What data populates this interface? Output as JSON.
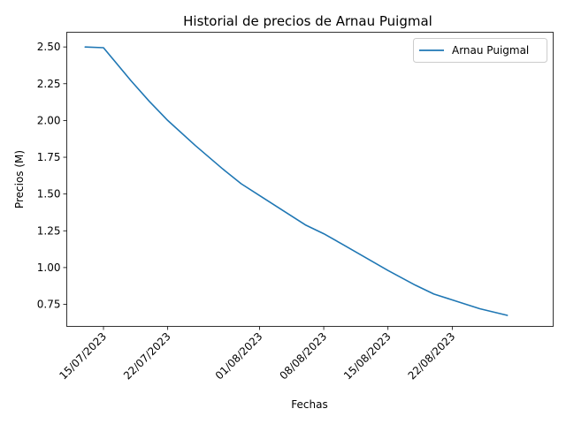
{
  "chart_data": {
    "type": "line",
    "title": "Historial de precios de Arnau Puigmal",
    "xlabel": "Fechas",
    "ylabel": "Precios (M)",
    "x_tick_labels": [
      "15/07/2023",
      "22/07/2023",
      "01/08/2023",
      "08/08/2023",
      "15/08/2023",
      "22/08/2023"
    ],
    "x_tick_dates": [
      "2023-07-15",
      "2023-07-22",
      "2023-08-01",
      "2023-08-08",
      "2023-08-15",
      "2023-08-22"
    ],
    "xlim": [
      "2023-07-11",
      "2023-09-02"
    ],
    "y_ticks": [
      "0.75",
      "1.00",
      "1.25",
      "1.50",
      "1.75",
      "2.00",
      "2.25",
      "2.50"
    ],
    "ylim": [
      0.6,
      2.6
    ],
    "grid": false,
    "legend_position": "top-right",
    "series": [
      {
        "name": "Arnau Puigmal",
        "color": "#1f77b4",
        "points": [
          {
            "x": "2023-07-13",
            "y": 2.5
          },
          {
            "x": "2023-07-15",
            "y": 2.495
          },
          {
            "x": "2023-07-18",
            "y": 2.27
          },
          {
            "x": "2023-07-20",
            "y": 2.13
          },
          {
            "x": "2023-07-22",
            "y": 2.0
          },
          {
            "x": "2023-07-25",
            "y": 1.83
          },
          {
            "x": "2023-07-28",
            "y": 1.67
          },
          {
            "x": "2023-07-30",
            "y": 1.57
          },
          {
            "x": "2023-08-01",
            "y": 1.49
          },
          {
            "x": "2023-08-04",
            "y": 1.37
          },
          {
            "x": "2023-08-06",
            "y": 1.29
          },
          {
            "x": "2023-08-08",
            "y": 1.23
          },
          {
            "x": "2023-08-10",
            "y": 1.16
          },
          {
            "x": "2023-08-15",
            "y": 0.98
          },
          {
            "x": "2023-08-18",
            "y": 0.88
          },
          {
            "x": "2023-08-20",
            "y": 0.82
          },
          {
            "x": "2023-08-22",
            "y": 0.78
          },
          {
            "x": "2023-08-25",
            "y": 0.72
          },
          {
            "x": "2023-08-28",
            "y": 0.675
          }
        ]
      }
    ]
  }
}
